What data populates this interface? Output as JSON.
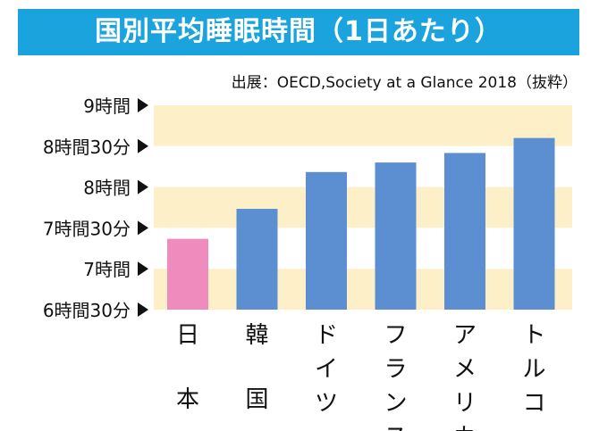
{
  "title": "国別平均睡眠時間（1日あたり）",
  "source": "出展：OECD,Society at a Glance 2018（抜粋）",
  "colors": {
    "title_bg": "#1aa3dd",
    "band": "#fdf0c8",
    "bar_default": "#5b8fd2",
    "bar_highlight": "#f08bbe",
    "axis_marker": "#111111"
  },
  "chart_data": {
    "type": "bar",
    "title": "国別平均睡眠時間（1日あたり）",
    "xlabel": "",
    "ylabel": "",
    "unit": "minutes",
    "ylim": [
      390,
      540
    ],
    "yticks": [
      {
        "value": 540,
        "label": "9時間"
      },
      {
        "value": 510,
        "label": "8時間30分"
      },
      {
        "value": 480,
        "label": "8時間"
      },
      {
        "value": 450,
        "label": "7時間30分"
      },
      {
        "value": 420,
        "label": "7時間"
      },
      {
        "value": 390,
        "label": "6時間30分"
      }
    ],
    "categories": [
      "日本",
      "韓国",
      "ドイツ",
      "フランス",
      "アメリカ",
      "トルコ"
    ],
    "values": [
      442,
      464,
      491,
      498,
      505,
      516
    ],
    "highlight_index": 0,
    "grid": "alternating horizontal bands",
    "legend": "none"
  }
}
